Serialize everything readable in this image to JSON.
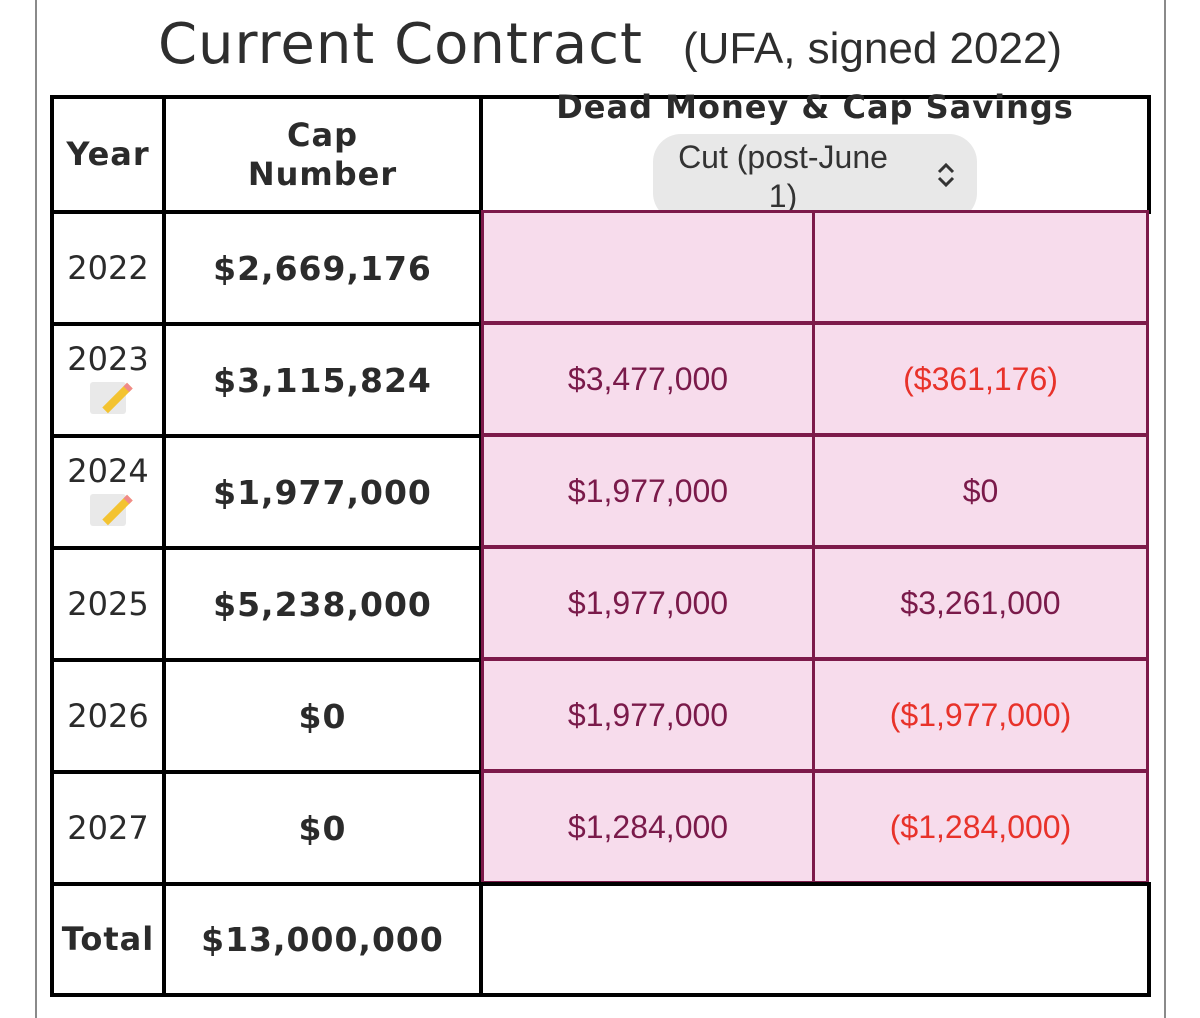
{
  "title": {
    "main": "Current Contract",
    "sub": "(UFA, signed 2022)"
  },
  "headers": {
    "year": "Year",
    "cap_line1": "Cap",
    "cap_line2": "Number",
    "dead": "Dead Money & Cap Savings"
  },
  "select": {
    "value": "Cut (post-June 1)",
    "icon": "up-down-chevron-icon"
  },
  "rows": [
    {
      "year": "2022",
      "cap": "$2,669,176",
      "dead": "",
      "savings": "",
      "note_icon": false
    },
    {
      "year": "2023",
      "cap": "$3,115,824",
      "dead": "$3,477,000",
      "savings": "($361,176)",
      "note_icon": true
    },
    {
      "year": "2024",
      "cap": "$1,977,000",
      "dead": "$1,977,000",
      "savings": "$0",
      "note_icon": true
    },
    {
      "year": "2025",
      "cap": "$5,238,000",
      "dead": "$1,977,000",
      "savings": "$3,261,000",
      "note_icon": false
    },
    {
      "year": "2026",
      "cap": "$0",
      "dead": "$1,977,000",
      "savings": "($1,977,000)",
      "note_icon": false
    },
    {
      "year": "2027",
      "cap": "$0",
      "dead": "$1,284,000",
      "savings": "($1,284,000)",
      "note_icon": false
    }
  ],
  "total": {
    "label": "Total",
    "cap": "$13,000,000"
  },
  "colors": {
    "pink_bg": "#f7dcec",
    "maroon": "#7a1a4a",
    "negative": "#e8322a"
  }
}
